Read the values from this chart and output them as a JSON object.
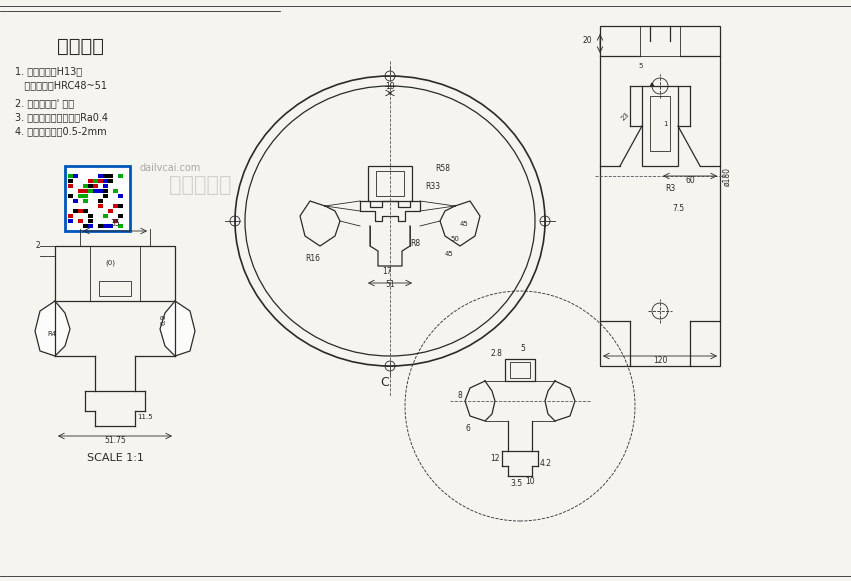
{
  "bg_color": "#f5f4ef",
  "line_color": "#2a2a2a",
  "title_text": "技术要求",
  "tech_req": [
    "1. 模具材料：H13，",
    "   热处理硬度HRC48~51",
    "2. 导流室：粗' 精铣",
    "3. 工作带表面粗糙度为Ra0.4",
    "4. 工作带空刀：0.5-2mm"
  ],
  "watermark_text": "大沥铝材网",
  "watermark_sub": "dailvcai.com",
  "scale_text": "SCALE 1:1",
  "label_c": "C"
}
